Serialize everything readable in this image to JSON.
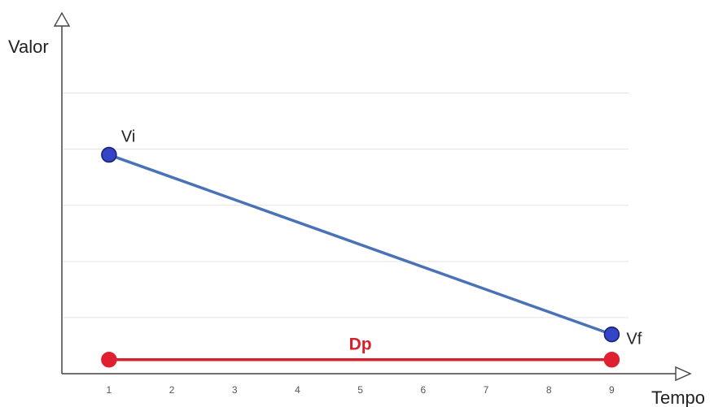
{
  "chart_data": {
    "type": "line",
    "xlabel": "Tempo",
    "ylabel": "Valor",
    "x_ticks": [
      "1",
      "2",
      "3",
      "4",
      "5",
      "6",
      "7",
      "8",
      "9"
    ],
    "xlim": [
      0.25,
      9.5
    ],
    "ylim": [
      0,
      5.5
    ],
    "grid": true,
    "series": [
      {
        "key": "decline",
        "color": "#4a73b5",
        "marker_color": "#3344c4",
        "points": [
          {
            "x": 1,
            "y": 3.9,
            "label": "Vi"
          },
          {
            "x": 9,
            "y": 0.7,
            "label": "Vf"
          }
        ]
      },
      {
        "key": "dp",
        "name": "Dp",
        "color": "#d8202a",
        "marker_color": "#e02030",
        "points": [
          {
            "x": 1,
            "y": 0.25
          },
          {
            "x": 9,
            "y": 0.25
          }
        ]
      }
    ]
  }
}
